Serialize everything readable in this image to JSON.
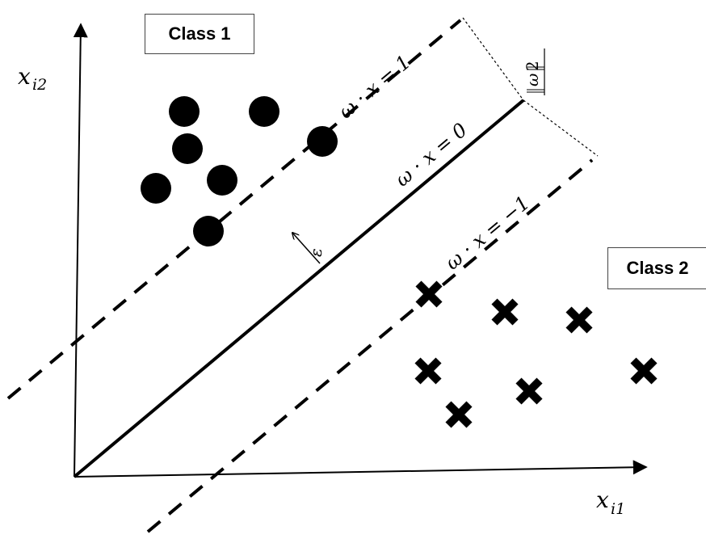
{
  "labels": {
    "class1": "Class 1",
    "class2": "Class 2",
    "x_axis": {
      "base": "x",
      "sub": "i1"
    },
    "y_axis": {
      "base": "x",
      "sub": "i2"
    },
    "line_upper": "ω · x = 1",
    "line_middle": "ω · x = 0",
    "line_lower": "ω · x = −1",
    "epsilon": "ε",
    "margin": {
      "numerator": "2",
      "denominator": "ω"
    }
  },
  "markers": {
    "class1": "filled-circle",
    "class2": "bold-cross"
  }
}
